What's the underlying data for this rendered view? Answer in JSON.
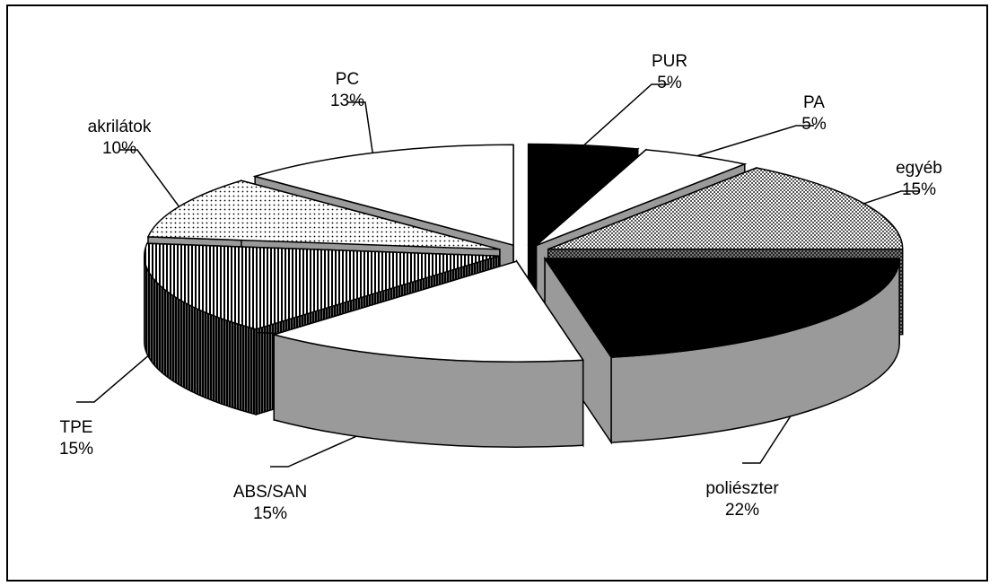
{
  "chart_data": {
    "type": "pie",
    "style": "3d-exploded",
    "legend": "none",
    "slices": [
      {
        "label": "PUR",
        "value": 5,
        "display": "5%"
      },
      {
        "label": "PA",
        "value": 5,
        "display": "5%"
      },
      {
        "label": "egyéb",
        "value": 15,
        "display": "15%"
      },
      {
        "label": "poliészter",
        "value": 22,
        "display": "22%"
      },
      {
        "label": "ABS/SAN",
        "value": 15,
        "display": "15%"
      },
      {
        "label": "TPE",
        "value": 15,
        "display": "15%"
      },
      {
        "label": "akrilátok",
        "value": 10,
        "display": "10%"
      },
      {
        "label": "PC",
        "value": 13,
        "display": "13%"
      }
    ]
  },
  "colors": {
    "background": "#ffffff",
    "outline": "#000000",
    "black_fill": "#000000",
    "white_fill": "#ffffff",
    "gray_side": "#9a9a9a",
    "dark_side": "#4a4a4a"
  }
}
